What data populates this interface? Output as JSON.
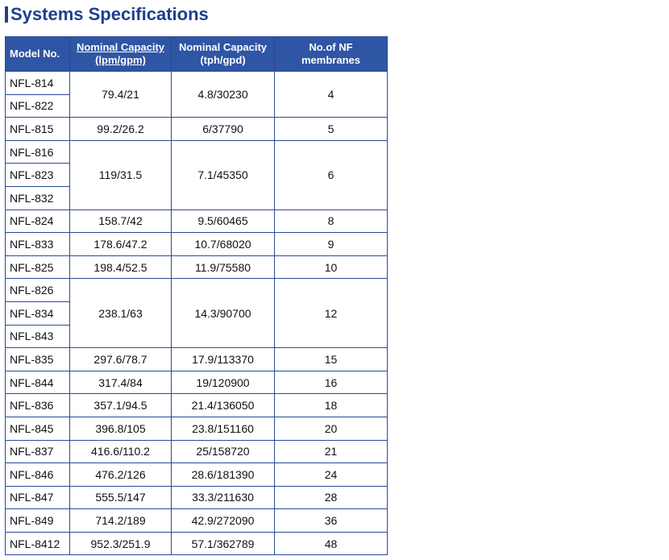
{
  "title": "Systems Specifications",
  "table": {
    "header": [
      [
        "Model No."
      ],
      [
        "Nominal Capacity",
        "(lpm/gpm)"
      ],
      [
        "Nominal Capacity",
        "(tph/gpd)"
      ],
      [
        "No.of NF",
        "membranes"
      ]
    ],
    "groups": [
      {
        "models": [
          "NFL-814",
          "NFL-822"
        ],
        "lpm_gpm": "79.4/21",
        "tph_gpd": "4.8/30230",
        "membranes": 4
      },
      {
        "models": [
          "NFL-815"
        ],
        "lpm_gpm": "99.2/26.2",
        "tph_gpd": "6/37790",
        "membranes": 5
      },
      {
        "models": [
          "NFL-816",
          "NFL-823",
          "NFL-832"
        ],
        "lpm_gpm": "119/31.5",
        "tph_gpd": "7.1/45350",
        "membranes": 6
      },
      {
        "models": [
          "NFL-824"
        ],
        "lpm_gpm": "158.7/42",
        "tph_gpd": "9.5/60465",
        "membranes": 8
      },
      {
        "models": [
          "NFL-833"
        ],
        "lpm_gpm": "178.6/47.2",
        "tph_gpd": "10.7/68020",
        "membranes": 9
      },
      {
        "models": [
          "NFL-825"
        ],
        "lpm_gpm": "198.4/52.5",
        "tph_gpd": "11.9/75580",
        "membranes": 10
      },
      {
        "models": [
          "NFL-826",
          "NFL-834",
          "NFL-843"
        ],
        "lpm_gpm": "238.1/63",
        "tph_gpd": "14.3/90700",
        "membranes": 12
      },
      {
        "models": [
          "NFL-835"
        ],
        "lpm_gpm": "297.6/78.7",
        "tph_gpd": "17.9/113370",
        "membranes": 15
      },
      {
        "models": [
          "NFL-844"
        ],
        "lpm_gpm": "317.4/84",
        "tph_gpd": "19/120900",
        "membranes": 16
      },
      {
        "models": [
          "NFL-836"
        ],
        "lpm_gpm": "357.1/94.5",
        "tph_gpd": "21.4/136050",
        "membranes": 18
      },
      {
        "models": [
          "NFL-845"
        ],
        "lpm_gpm": "396.8/105",
        "tph_gpd": "23.8/151160",
        "membranes": 20
      },
      {
        "models": [
          "NFL-837"
        ],
        "lpm_gpm": "416.6/110.2",
        "tph_gpd": "25/158720",
        "membranes": 21
      },
      {
        "models": [
          "NFL-846"
        ],
        "lpm_gpm": "476.2/126",
        "tph_gpd": "28.6/181390",
        "membranes": 24
      },
      {
        "models": [
          "NFL-847"
        ],
        "lpm_gpm": "555.5/147",
        "tph_gpd": "33.3/211630",
        "membranes": 28
      },
      {
        "models": [
          "NFL-849"
        ],
        "lpm_gpm": "714.2/189",
        "tph_gpd": "42.9/272090",
        "membranes": 36
      },
      {
        "models": [
          "NFL-8412"
        ],
        "lpm_gpm": "952.3/251.9",
        "tph_gpd": "57.1/362789",
        "membranes": 48
      }
    ]
  }
}
